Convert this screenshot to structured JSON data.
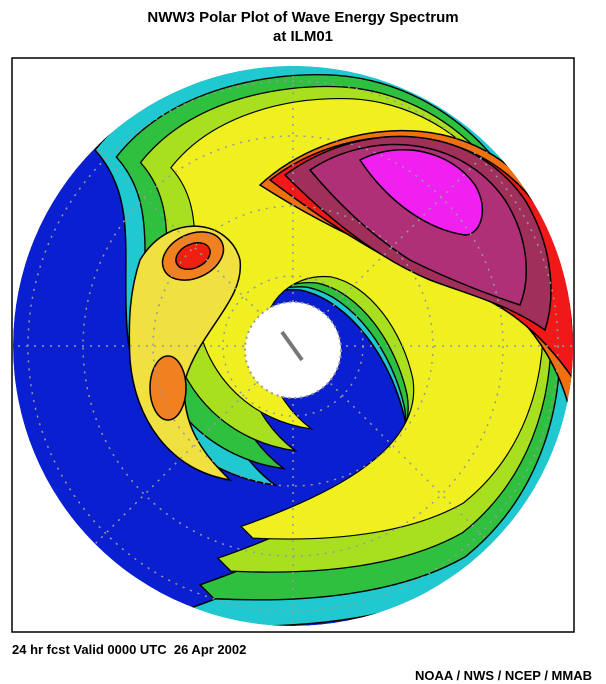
{
  "header": {
    "title_line1": "NWW3 Polar Plot of Wave Energy Spectrum",
    "title_line2": "at ILM01"
  },
  "footer": {
    "valid_time": "24 hr fcst Valid 0000 UTC  26 Apr 2002",
    "credit": "NOAA / NWS / NCEP / MMAB"
  }
}
